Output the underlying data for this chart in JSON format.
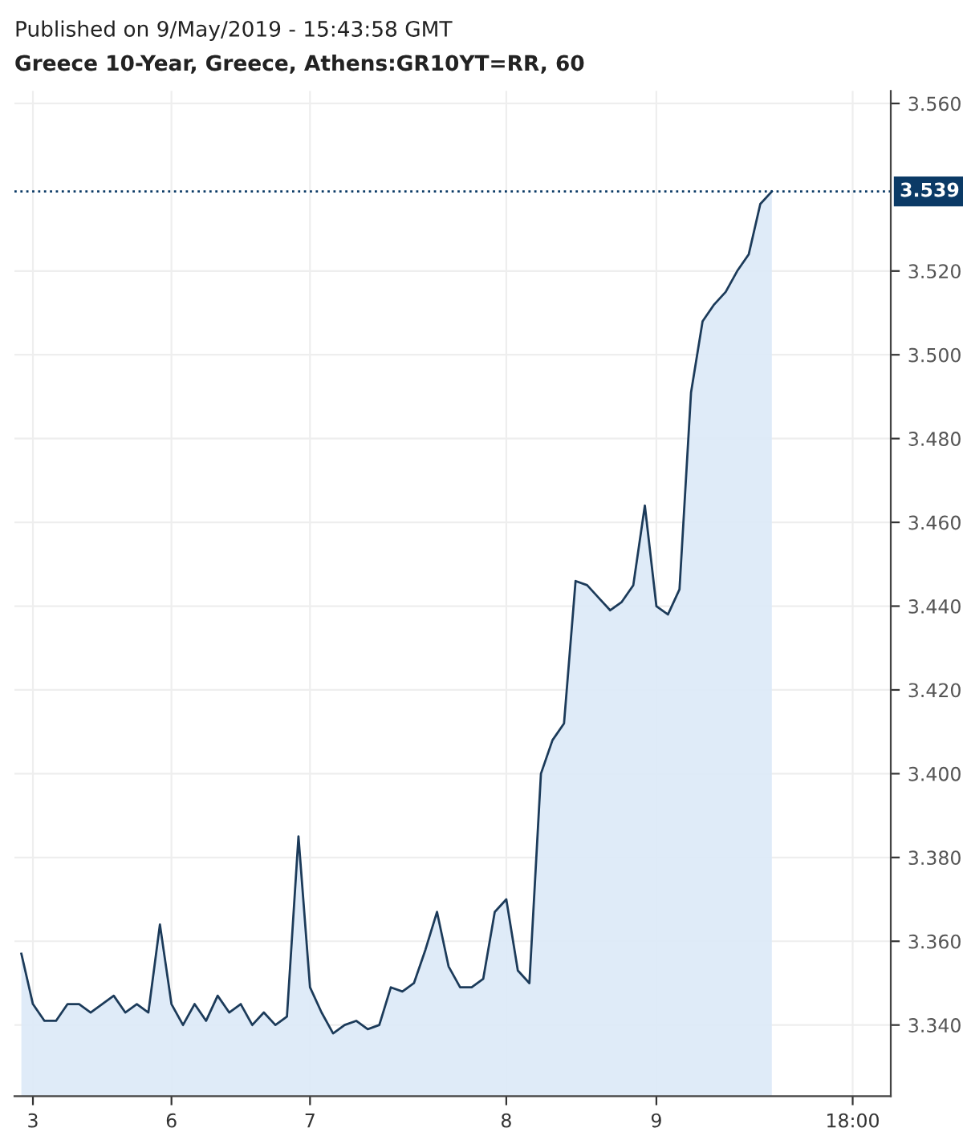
{
  "chart_data": {
    "type": "area",
    "subtitle": "Published on 9/May/2019 - 15:43:58 GMT",
    "title": "Greece 10-Year, Greece, Athens:GR10YT=RR, 60",
    "categories": [
      null,
      "3",
      null,
      null,
      null,
      null,
      null,
      null,
      null,
      null,
      null,
      null,
      null,
      "6",
      null,
      null,
      null,
      null,
      null,
      null,
      null,
      null,
      null,
      null,
      null,
      "7",
      null,
      null,
      null,
      null,
      null,
      null,
      null,
      null,
      null,
      null,
      null,
      null,
      null,
      null,
      null,
      null,
      "8",
      null,
      null,
      null,
      null,
      null,
      null,
      null,
      null,
      null,
      null,
      null,
      null,
      "9",
      null,
      null,
      null,
      null,
      null,
      null,
      null,
      null,
      null,
      null,
      null,
      null,
      null,
      null,
      null,
      null,
      "18:00",
      null,
      null,
      null
    ],
    "series": [
      {
        "color": "#1c3b5a",
        "values": [
          3.357,
          3.345,
          3.341,
          3.341,
          3.345,
          3.345,
          3.343,
          3.345,
          3.347,
          3.343,
          3.345,
          3.343,
          3.364,
          3.345,
          3.34,
          3.345,
          3.341,
          3.347,
          3.343,
          3.345,
          3.34,
          3.343,
          3.34,
          3.342,
          3.385,
          3.349,
          3.343,
          3.338,
          3.34,
          3.341,
          3.339,
          3.34,
          3.349,
          3.348,
          3.35,
          3.358,
          3.367,
          3.354,
          3.349,
          3.349,
          3.351,
          3.367,
          3.37,
          3.353,
          3.35,
          3.4,
          3.408,
          3.412,
          3.446,
          3.445,
          3.442,
          3.439,
          3.441,
          3.445,
          3.464,
          3.44,
          3.438,
          3.444,
          3.491,
          3.508,
          3.512,
          3.515,
          3.52,
          3.524,
          3.536,
          3.539,
          null,
          null,
          null,
          null,
          null,
          null,
          null,
          null,
          null,
          null
        ]
      }
    ],
    "ylim": [
      3.323,
      3.563
    ],
    "yticks": [
      {
        "value": 3.34,
        "label": "3.340"
      },
      {
        "value": 3.36,
        "label": "3.360"
      },
      {
        "value": 3.38,
        "label": "3.380"
      },
      {
        "value": 3.4,
        "label": "3.400"
      },
      {
        "value": 3.42,
        "label": "3.420"
      },
      {
        "value": 3.44,
        "label": "3.440"
      },
      {
        "value": 3.46,
        "label": "3.460"
      },
      {
        "value": 3.48,
        "label": "3.480"
      },
      {
        "value": 3.5,
        "label": "3.500"
      },
      {
        "value": 3.52,
        "label": "3.520"
      },
      {
        "value": 3.56,
        "label": "3.560"
      }
    ],
    "ref_lines": [
      {
        "axis": "y",
        "value": 3.539,
        "label": "3.539",
        "color": "#0b3a66",
        "line_style": "dotted"
      }
    ],
    "grid": true
  }
}
